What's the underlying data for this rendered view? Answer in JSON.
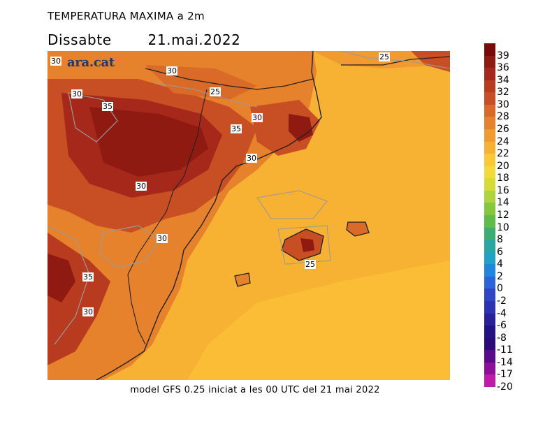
{
  "header": {
    "title": "TEMPERATURA MAXIMA a 2m",
    "subtitle": "Dissabte    21.mai.2022"
  },
  "footer": "model GFS 0.25 iniciat a les 00 UTC del 21 mai 2022",
  "logo": "ara.cat",
  "colorbar": {
    "labels": [
      "39",
      "36",
      "34",
      "32",
      "30",
      "28",
      "26",
      "24",
      "22",
      "20",
      "18",
      "16",
      "14",
      "12",
      "10",
      "8",
      "6",
      "4",
      "2",
      "0",
      "-2",
      "-4",
      "-6",
      "-8",
      "-11",
      "-14",
      "-17",
      "-20"
    ],
    "colors": [
      "#7a0a0a",
      "#8f1a12",
      "#a5281a",
      "#b83a1f",
      "#c84e24",
      "#d96a28",
      "#e6822c",
      "#f09a30",
      "#f7b234",
      "#fbc83a",
      "#f2da3a",
      "#d6dc36",
      "#b0d43a",
      "#86c83c",
      "#5ebc48",
      "#3caf70",
      "#28a8a0",
      "#1ea2c8",
      "#1e86e0",
      "#2a64dc",
      "#2e46c8",
      "#2c32b0",
      "#28209a",
      "#221286",
      "#2a0a78",
      "#5a0a8a",
      "#900c9a",
      "#c01aa8"
    ]
  },
  "map": {
    "contour_labels": [
      "30",
      "30",
      "25",
      "30",
      "35",
      "30",
      "35",
      "30",
      "30",
      "25",
      "30",
      "35",
      "30",
      "25"
    ]
  }
}
